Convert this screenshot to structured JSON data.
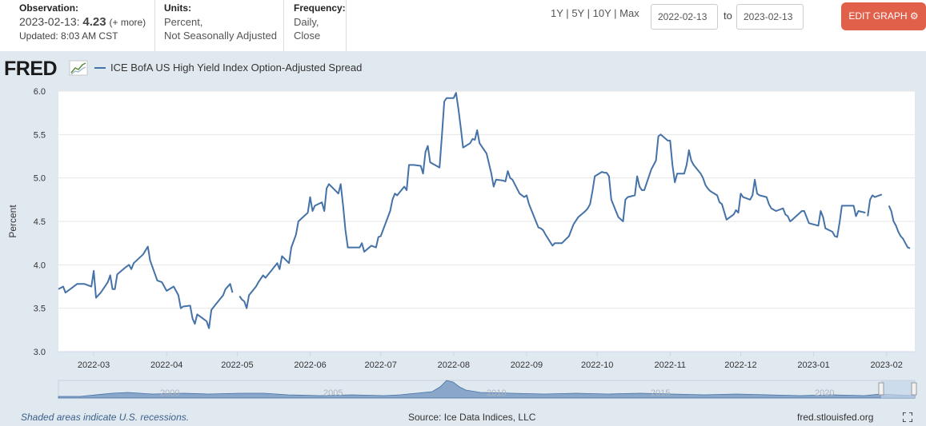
{
  "header": {
    "observation_label": "Observation:",
    "observation_date": "2023-02-13:",
    "observation_value": "4.23",
    "observation_more": "(+ more)",
    "updated": "Updated: 8:03 AM CST",
    "units_label": "Units:",
    "units_line1": "Percent,",
    "units_line2": "Not Seasonally Adjusted",
    "frequency_label": "Frequency:",
    "frequency_line1": "Daily,",
    "frequency_line2": "Close",
    "range_buttons": [
      "1Y",
      "5Y",
      "10Y",
      "Max"
    ],
    "range_sep": "|",
    "date_from": "2022-02-13",
    "date_to": "2023-02-13",
    "to_label": "to",
    "edit_graph": "EDIT GRAPH"
  },
  "logo_text": "FRED",
  "footer": {
    "recession_note": "Shaded areas indicate U.S. recessions.",
    "source": "Source: Ice Data Indices, LLC",
    "site": "fred.stlouisfed.org"
  },
  "colors": {
    "series": "#4572a7",
    "panel_bg": "#e1e9f0",
    "edit_button": "#e1604a",
    "navigator_fill": "#8aa7c9"
  },
  "chart_data": {
    "type": "line",
    "title": "",
    "xlabel": "",
    "ylabel": "Percent",
    "ylim": [
      3.0,
      6.0
    ],
    "yticks": [
      "3.0",
      "3.5",
      "4.0",
      "4.5",
      "5.0",
      "5.5",
      "6.0"
    ],
    "xlim": [
      "2022-02-14",
      "2023-02-13"
    ],
    "xticks": [
      "2022-03",
      "2022-04",
      "2022-05",
      "2022-06",
      "2022-07",
      "2022-08",
      "2022-09",
      "2022-10",
      "2022-11",
      "2022-12",
      "2023-01",
      "2023-02"
    ],
    "grid": true,
    "legend": "top-left",
    "series": [
      {
        "name": "ICE BofA US High Yield Index Option-Adjusted Spread",
        "points": [
          [
            "2022-02-14",
            3.72
          ],
          [
            "2022-02-16",
            3.75
          ],
          [
            "2022-02-17",
            3.68
          ],
          [
            "2022-02-18",
            3.7
          ],
          [
            "2022-02-22",
            3.78
          ],
          [
            "2022-02-24",
            3.78
          ],
          [
            "2022-02-25",
            3.78
          ],
          [
            "2022-02-28",
            3.75
          ],
          [
            "2022-03-01",
            3.93
          ],
          [
            "2022-03-02",
            3.62
          ],
          [
            "2022-03-04",
            3.68
          ],
          [
            "2022-03-07",
            3.8
          ],
          [
            "2022-03-08",
            3.88
          ],
          [
            "2022-03-09",
            3.72
          ],
          [
            "2022-03-10",
            3.72
          ],
          [
            "2022-03-11",
            3.89
          ],
          [
            "2022-03-14",
            3.96
          ],
          [
            "2022-03-16",
            4.0
          ],
          [
            "2022-03-17",
            3.95
          ],
          [
            "2022-03-18",
            4.02
          ],
          [
            "2022-03-22",
            4.12
          ],
          [
            "2022-03-24",
            4.21
          ],
          [
            "2022-03-25",
            4.05
          ],
          [
            "2022-03-28",
            3.82
          ],
          [
            "2022-03-30",
            3.8
          ],
          [
            "2022-04-01",
            3.7
          ],
          [
            "2022-04-04",
            3.75
          ],
          [
            "2022-04-06",
            3.65
          ],
          [
            "2022-04-07",
            3.5
          ],
          [
            "2022-04-08",
            3.52
          ],
          [
            "2022-04-11",
            3.53
          ],
          [
            "2022-04-12",
            3.38
          ],
          [
            "2022-04-13",
            3.32
          ],
          [
            "2022-04-14",
            3.43
          ],
          [
            "2022-04-18",
            3.35
          ],
          [
            "2022-04-19",
            3.27
          ],
          [
            "2022-04-20",
            3.48
          ],
          [
            "2022-04-22",
            3.55
          ],
          [
            "2022-04-25",
            3.65
          ],
          [
            "2022-04-26",
            3.72
          ],
          [
            "2022-04-28",
            3.78
          ],
          [
            "2022-04-29",
            3.68
          ],
          null,
          [
            "2022-05-02",
            3.64
          ],
          [
            "2022-05-03",
            3.6
          ],
          [
            "2022-05-04",
            3.58
          ],
          [
            "2022-05-05",
            3.5
          ],
          [
            "2022-05-06",
            3.65
          ],
          [
            "2022-05-09",
            3.75
          ],
          [
            "2022-05-10",
            3.8
          ],
          [
            "2022-05-12",
            3.88
          ],
          [
            "2022-05-13",
            3.85
          ],
          [
            "2022-05-16",
            3.95
          ],
          [
            "2022-05-18",
            4.02
          ],
          [
            "2022-05-19",
            3.95
          ],
          [
            "2022-05-20",
            4.1
          ],
          [
            "2022-05-23",
            4.02
          ],
          [
            "2022-05-24",
            4.2
          ],
          [
            "2022-05-26",
            4.35
          ],
          [
            "2022-05-27",
            4.5
          ],
          [
            "2022-05-31",
            4.6
          ],
          [
            "2022-06-01",
            4.78
          ],
          [
            "2022-06-02",
            4.62
          ],
          [
            "2022-06-03",
            4.68
          ],
          [
            "2022-06-06",
            4.72
          ],
          [
            "2022-06-07",
            4.62
          ],
          [
            "2022-06-08",
            4.88
          ],
          [
            "2022-06-09",
            4.93
          ],
          [
            "2022-06-13",
            4.82
          ],
          [
            "2022-06-14",
            4.93
          ],
          [
            "2022-06-15",
            4.68
          ],
          [
            "2022-06-16",
            4.4
          ],
          [
            "2022-06-17",
            4.2
          ],
          [
            "2022-06-22",
            4.2
          ],
          [
            "2022-06-23",
            4.25
          ],
          [
            "2022-06-24",
            4.15
          ],
          [
            "2022-06-27",
            4.22
          ],
          [
            "2022-06-29",
            4.2
          ],
          [
            "2022-06-30",
            4.32
          ],
          [
            "2022-07-01",
            4.33
          ],
          [
            "2022-07-05",
            4.62
          ],
          [
            "2022-07-06",
            4.75
          ],
          [
            "2022-07-07",
            4.82
          ],
          [
            "2022-07-08",
            4.8
          ],
          [
            "2022-07-11",
            4.9
          ],
          [
            "2022-07-12",
            4.86
          ],
          [
            "2022-07-13",
            5.15
          ],
          [
            "2022-07-15",
            5.15
          ],
          [
            "2022-07-18",
            5.14
          ],
          [
            "2022-07-19",
            5.05
          ],
          [
            "2022-07-20",
            5.3
          ],
          [
            "2022-07-21",
            5.37
          ],
          [
            "2022-07-22",
            5.18
          ],
          [
            "2022-07-26",
            5.12
          ],
          [
            "2022-07-27",
            5.48
          ],
          [
            "2022-07-28",
            5.88
          ],
          [
            "2022-07-29",
            5.92
          ],
          [
            "2022-08-01",
            5.92
          ],
          [
            "2022-08-02",
            5.98
          ],
          [
            "2022-08-03",
            5.8
          ],
          [
            "2022-08-04",
            5.58
          ],
          [
            "2022-08-05",
            5.35
          ],
          [
            "2022-08-08",
            5.4
          ],
          [
            "2022-08-09",
            5.45
          ],
          [
            "2022-08-10",
            5.44
          ],
          [
            "2022-08-11",
            5.55
          ],
          [
            "2022-08-12",
            5.4
          ],
          [
            "2022-08-15",
            5.28
          ],
          [
            "2022-08-17",
            5.05
          ],
          [
            "2022-08-18",
            4.9
          ],
          [
            "2022-08-19",
            4.98
          ],
          [
            "2022-08-22",
            4.97
          ],
          [
            "2022-08-23",
            4.96
          ],
          [
            "2022-08-24",
            5.08
          ],
          [
            "2022-08-25",
            5.0
          ],
          [
            "2022-08-26",
            4.98
          ],
          [
            "2022-08-29",
            4.82
          ],
          [
            "2022-08-31",
            4.78
          ],
          [
            "2022-09-01",
            4.8
          ],
          [
            "2022-09-02",
            4.7
          ],
          [
            "2022-09-06",
            4.43
          ],
          [
            "2022-09-07",
            4.42
          ],
          [
            "2022-09-08",
            4.4
          ],
          [
            "2022-09-09",
            4.35
          ],
          [
            "2022-09-12",
            4.22
          ],
          [
            "2022-09-13",
            4.25
          ],
          [
            "2022-09-16",
            4.25
          ],
          [
            "2022-09-19",
            4.33
          ],
          [
            "2022-09-20",
            4.4
          ],
          [
            "2022-09-21",
            4.47
          ],
          [
            "2022-09-23",
            4.55
          ],
          [
            "2022-09-26",
            4.62
          ],
          [
            "2022-09-27",
            4.65
          ],
          [
            "2022-09-28",
            4.7
          ],
          [
            "2022-09-29",
            4.85
          ],
          [
            "2022-09-30",
            5.02
          ],
          [
            "2022-10-03",
            5.07
          ],
          [
            "2022-10-04",
            5.06
          ],
          [
            "2022-10-05",
            5.06
          ],
          [
            "2022-10-06",
            5.02
          ],
          [
            "2022-10-07",
            4.75
          ],
          [
            "2022-10-10",
            4.55
          ],
          [
            "2022-10-12",
            4.5
          ],
          [
            "2022-10-13",
            4.75
          ],
          [
            "2022-10-14",
            4.78
          ],
          [
            "2022-10-17",
            4.8
          ],
          [
            "2022-10-18",
            5.02
          ],
          [
            "2022-10-19",
            4.9
          ],
          [
            "2022-10-20",
            4.86
          ],
          [
            "2022-10-21",
            4.86
          ],
          [
            "2022-10-24",
            5.1
          ],
          [
            "2022-10-25",
            5.15
          ],
          [
            "2022-10-26",
            5.2
          ],
          [
            "2022-10-27",
            5.48
          ],
          [
            "2022-10-28",
            5.5
          ],
          [
            "2022-10-31",
            5.43
          ],
          [
            "2022-11-01",
            5.43
          ],
          [
            "2022-11-02",
            5.15
          ],
          [
            "2022-11-03",
            4.95
          ],
          [
            "2022-11-04",
            5.05
          ],
          [
            "2022-11-07",
            5.05
          ],
          [
            "2022-11-08",
            5.15
          ],
          [
            "2022-11-09",
            5.32
          ],
          [
            "2022-11-10",
            5.2
          ],
          [
            "2022-11-11",
            5.15
          ],
          [
            "2022-11-14",
            5.05
          ],
          [
            "2022-11-15",
            5.0
          ],
          [
            "2022-11-16",
            4.92
          ],
          [
            "2022-11-17",
            4.88
          ],
          [
            "2022-11-18",
            4.85
          ],
          [
            "2022-11-21",
            4.8
          ],
          [
            "2022-11-22",
            4.72
          ],
          [
            "2022-11-23",
            4.7
          ],
          [
            "2022-11-25",
            4.52
          ],
          [
            "2022-11-28",
            4.58
          ],
          [
            "2022-11-29",
            4.63
          ],
          [
            "2022-11-30",
            4.6
          ],
          [
            "2022-12-01",
            4.82
          ],
          [
            "2022-12-02",
            4.78
          ],
          [
            "2022-12-05",
            4.75
          ],
          [
            "2022-12-06",
            4.8
          ],
          [
            "2022-12-07",
            4.98
          ],
          [
            "2022-12-08",
            4.82
          ],
          [
            "2022-12-09",
            4.8
          ],
          [
            "2022-12-12",
            4.78
          ],
          [
            "2022-12-13",
            4.7
          ],
          [
            "2022-12-14",
            4.65
          ],
          [
            "2022-12-16",
            4.62
          ],
          [
            "2022-12-19",
            4.65
          ],
          [
            "2022-12-20",
            4.58
          ],
          [
            "2022-12-21",
            4.56
          ],
          [
            "2022-12-22",
            4.5
          ],
          [
            "2022-12-23",
            4.52
          ],
          [
            "2022-12-27",
            4.62
          ],
          [
            "2022-12-28",
            4.62
          ],
          [
            "2022-12-29",
            4.55
          ],
          [
            "2022-12-30",
            4.48
          ],
          [
            "2023-01-03",
            4.45
          ],
          [
            "2023-01-04",
            4.62
          ],
          [
            "2023-01-05",
            4.55
          ],
          [
            "2023-01-06",
            4.42
          ],
          [
            "2023-01-09",
            4.38
          ],
          [
            "2023-01-10",
            4.33
          ],
          [
            "2023-01-11",
            4.32
          ],
          [
            "2023-01-12",
            4.48
          ],
          [
            "2023-01-13",
            4.68
          ],
          [
            "2023-01-17",
            4.68
          ],
          [
            "2023-01-18",
            4.68
          ],
          [
            "2023-01-19",
            4.56
          ],
          [
            "2023-01-20",
            4.62
          ],
          [
            "2023-01-23",
            4.6
          ],
          null,
          [
            "2023-01-24",
            4.56
          ],
          [
            "2023-01-25",
            4.75
          ],
          [
            "2023-01-26",
            4.8
          ],
          [
            "2023-01-27",
            4.78
          ],
          [
            "2023-01-30",
            4.81
          ],
          null,
          [
            "2023-02-02",
            4.68
          ],
          [
            "2023-02-03",
            4.62
          ],
          [
            "2023-02-04",
            4.5
          ],
          [
            "2023-02-05",
            4.45
          ],
          [
            "2023-02-06",
            4.38
          ],
          [
            "2023-02-07",
            4.33
          ],
          [
            "2023-02-08",
            4.3
          ],
          [
            "2023-02-09",
            4.25
          ],
          [
            "2023-02-10",
            4.2
          ],
          [
            "2023-02-11",
            4.19
          ]
        ]
      }
    ]
  }
}
